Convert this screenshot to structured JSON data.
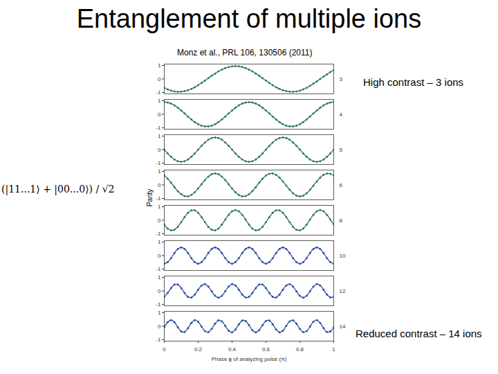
{
  "chart_data": {
    "type": "line",
    "title": "Entanglement of multiple ions",
    "subtitle": "Monz et al., PRL 106, 130506 (2011)",
    "x_label": "Phase ϕ of analyzing pulse (π)",
    "y_label": "Parity",
    "annotations": [
      "(|11...1⟩ + |00...0⟩) / √2",
      "High contrast – 3 ions",
      "Reduced contrast – 14 ions"
    ],
    "xlim": [
      0,
      1
    ],
    "xticks": [
      0,
      0.2,
      0.4,
      0.6,
      0.8,
      1
    ],
    "ylim": [
      -1.1,
      1.1
    ],
    "yticks": [
      -1,
      0,
      1
    ],
    "marker": "dot",
    "x": [
      0,
      0.02,
      0.04,
      0.06,
      0.08,
      0.1,
      0.12,
      0.14,
      0.16,
      0.18,
      0.2,
      0.22,
      0.24,
      0.26,
      0.28,
      0.3,
      0.32,
      0.34,
      0.36,
      0.38,
      0.4,
      0.42,
      0.44,
      0.46,
      0.48,
      0.5,
      0.52,
      0.54,
      0.56,
      0.58,
      0.6,
      0.62,
      0.64,
      0.66,
      0.68,
      0.7,
      0.72,
      0.74,
      0.76,
      0.78,
      0.8,
      0.82,
      0.84,
      0.86,
      0.88,
      0.9,
      0.92,
      0.94,
      0.96,
      0.98,
      1
    ],
    "series": [
      {
        "name": "3",
        "color": "#2f7566",
        "values": [
          -0.65,
          -0.77,
          -0.86,
          -0.92,
          -0.95,
          -0.94,
          -0.9,
          -0.83,
          -0.73,
          -0.61,
          -0.46,
          -0.29,
          -0.12,
          0.06,
          0.24,
          0.4,
          0.56,
          0.69,
          0.8,
          0.88,
          0.93,
          0.95,
          0.93,
          0.88,
          0.8,
          0.69,
          0.56,
          0.4,
          0.24,
          0.06,
          -0.12,
          -0.29,
          -0.46,
          -0.61,
          -0.73,
          -0.83,
          -0.9,
          -0.94,
          -0.95,
          -0.92,
          -0.86,
          -0.77,
          -0.65,
          -0.51,
          -0.35,
          -0.18,
          0,
          0.18,
          0.35,
          0.51,
          0.65
        ]
      },
      {
        "name": "4",
        "color": "#2f7566",
        "values": [
          0.9,
          0.87,
          0.79,
          0.66,
          0.48,
          0.28,
          0.06,
          -0.17,
          -0.38,
          -0.57,
          -0.73,
          -0.84,
          -0.89,
          -0.89,
          -0.84,
          -0.73,
          -0.57,
          -0.38,
          -0.17,
          0.06,
          0.28,
          0.48,
          0.66,
          0.79,
          0.87,
          0.9,
          0.87,
          0.79,
          0.66,
          0.48,
          0.28,
          0.06,
          -0.17,
          -0.38,
          -0.57,
          -0.73,
          -0.84,
          -0.89,
          -0.89,
          -0.84,
          -0.73,
          -0.57,
          -0.38,
          -0.17,
          0.06,
          0.28,
          0.48,
          0.66,
          0.79,
          0.87,
          0.9
        ]
      },
      {
        "name": "5",
        "color": "#2f7566",
        "values": [
          0,
          -0.28,
          -0.53,
          -0.73,
          -0.86,
          -0.9,
          -0.86,
          -0.73,
          -0.53,
          -0.28,
          0,
          0.28,
          0.53,
          0.73,
          0.86,
          0.9,
          0.86,
          0.73,
          0.53,
          0.28,
          0,
          -0.28,
          -0.53,
          -0.73,
          -0.86,
          -0.9,
          -0.86,
          -0.73,
          -0.53,
          -0.28,
          0,
          0.28,
          0.53,
          0.73,
          0.86,
          0.9,
          0.86,
          0.73,
          0.53,
          0.28,
          0,
          -0.28,
          -0.53,
          -0.73,
          -0.86,
          -0.9,
          -0.86,
          -0.73,
          -0.53,
          -0.28,
          0
        ]
      },
      {
        "name": "6",
        "color": "#2f7566",
        "values": [
          0.69,
          0.46,
          0.16,
          -0.16,
          -0.46,
          -0.69,
          -0.82,
          -0.84,
          -0.74,
          -0.54,
          -0.26,
          0.05,
          0.36,
          0.62,
          0.79,
          0.85,
          0.79,
          0.62,
          0.36,
          0.05,
          -0.26,
          -0.54,
          -0.74,
          -0.84,
          -0.82,
          -0.69,
          -0.46,
          -0.16,
          0.16,
          0.46,
          0.69,
          0.82,
          0.84,
          0.74,
          0.54,
          0.26,
          -0.05,
          -0.36,
          -0.62,
          -0.79,
          -0.85,
          -0.79,
          -0.62,
          -0.36,
          -0.05,
          0.26,
          0.54,
          0.74,
          0.84,
          0.82,
          0.69
        ]
      },
      {
        "name": "8",
        "color": "#2f7566",
        "values": [
          -0.32,
          -0.61,
          -0.74,
          -0.7,
          -0.48,
          -0.14,
          0.23,
          0.55,
          0.73,
          0.73,
          0.55,
          0.23,
          -0.14,
          -0.48,
          -0.7,
          -0.74,
          -0.61,
          -0.32,
          0.05,
          0.4,
          0.66,
          0.75,
          0.66,
          0.4,
          0.05,
          -0.32,
          -0.61,
          -0.74,
          -0.7,
          -0.48,
          -0.14,
          0.23,
          0.55,
          0.73,
          0.73,
          0.55,
          0.23,
          -0.14,
          -0.48,
          -0.7,
          -0.74,
          -0.61,
          -0.32,
          0.05,
          0.4,
          0.66,
          0.75,
          0.66,
          0.4,
          0.05,
          -0.32
        ]
      },
      {
        "name": "10",
        "color": "#2c4fa0",
        "values": [
          -0.6,
          -0.49,
          -0.19,
          0.19,
          0.49,
          0.6,
          0.49,
          0.19,
          -0.19,
          -0.49,
          -0.6,
          -0.49,
          -0.19,
          0.19,
          0.49,
          0.6,
          0.49,
          0.19,
          -0.19,
          -0.49,
          -0.6,
          -0.49,
          -0.19,
          0.19,
          0.49,
          0.6,
          0.49,
          0.19,
          -0.19,
          -0.49,
          -0.6,
          -0.49,
          -0.19,
          0.19,
          0.49,
          0.6,
          0.49,
          0.19,
          -0.19,
          -0.49,
          -0.6,
          -0.49,
          -0.19,
          0.19,
          0.49,
          0.6,
          0.49,
          0.19,
          -0.19,
          -0.49,
          -0.6
        ]
      },
      {
        "name": "12",
        "color": "#2c4fa0",
        "values": [
          -0.44,
          -0.15,
          0.21,
          0.47,
          0.47,
          0.21,
          -0.15,
          -0.44,
          -0.48,
          -0.27,
          0.09,
          0.4,
          0.5,
          0.32,
          -0.03,
          -0.36,
          -0.5,
          -0.36,
          -0.03,
          0.32,
          0.5,
          0.4,
          0.09,
          -0.27,
          -0.48,
          -0.44,
          -0.15,
          0.21,
          0.47,
          0.47,
          0.21,
          -0.15,
          -0.44,
          -0.48,
          -0.27,
          0.09,
          0.4,
          0.5,
          0.32,
          -0.03,
          -0.36,
          -0.5,
          -0.36,
          -0.03,
          0.32,
          0.5,
          0.4,
          0.09,
          -0.27,
          -0.48,
          -0.44
        ]
      },
      {
        "name": "14",
        "color": "#2c4fa0",
        "values": [
          -0.08,
          0.29,
          0.45,
          0.29,
          -0.08,
          -0.39,
          -0.42,
          -0.14,
          0.24,
          0.45,
          0.33,
          -0.03,
          -0.36,
          -0.44,
          -0.19,
          0.19,
          0.44,
          0.36,
          0.03,
          -0.33,
          -0.45,
          -0.24,
          0.14,
          0.42,
          0.39,
          0.08,
          -0.29,
          -0.45,
          -0.29,
          0.08,
          0.39,
          0.42,
          0.14,
          -0.24,
          -0.45,
          -0.33,
          0.03,
          0.36,
          0.44,
          0.19,
          -0.19,
          -0.44,
          -0.36,
          -0.03,
          0.33,
          0.45,
          0.24,
          -0.14,
          -0.42,
          -0.39,
          -0.08
        ]
      }
    ]
  }
}
